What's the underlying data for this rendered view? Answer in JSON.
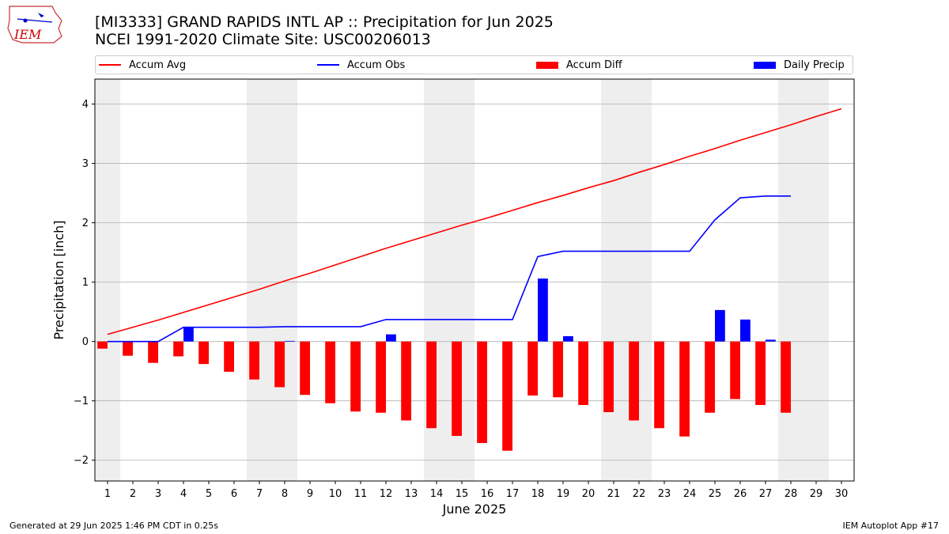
{
  "header": {
    "title": "[MI3333] GRAND RAPIDS INTL AP :: Precipitation for Jun 2025",
    "subtitle": "NCEI 1991-2020 Climate Site: USC00206013",
    "logo_text": "IEM"
  },
  "legend": {
    "placement": "top, above plot",
    "items": [
      {
        "label": "Accum Avg",
        "color": "#ff0000",
        "kind": "line"
      },
      {
        "label": "Accum Obs",
        "color": "#0000ff",
        "kind": "line"
      },
      {
        "label": "Accum Diff",
        "color": "#ff0000",
        "kind": "bar"
      },
      {
        "label": "Daily Precip",
        "color": "#0000ff",
        "kind": "bar"
      }
    ]
  },
  "footer": {
    "left": "Generated at 29 Jun 2025 1:46 PM CDT in 0.25s",
    "right": "IEM Autoplot App #17"
  },
  "chart_data": {
    "type": "bar",
    "xlabel": "June 2025",
    "ylabel": "Precipitation [inch]",
    "xlim": [
      0.5,
      30.5
    ],
    "ylim": [
      -2.35,
      4.42
    ],
    "yticks": [
      -2,
      -1,
      0,
      1,
      2,
      3,
      4
    ],
    "ytick_labels": [
      "−2",
      "−1",
      "0",
      "1",
      "2",
      "3",
      "4"
    ],
    "days": [
      1,
      2,
      3,
      4,
      5,
      6,
      7,
      8,
      9,
      10,
      11,
      12,
      13,
      14,
      15,
      16,
      17,
      18,
      19,
      20,
      21,
      22,
      23,
      24,
      25,
      26,
      27,
      28,
      29,
      30
    ],
    "grid": "horizontal",
    "weekend_shading": [
      [
        0.5,
        1.5
      ],
      [
        6.5,
        8.5
      ],
      [
        13.5,
        15.5
      ],
      [
        20.5,
        22.5
      ],
      [
        27.5,
        29.5
      ]
    ],
    "series": [
      {
        "name": "Accum Avg",
        "kind": "line",
        "color": "#ff0000",
        "x": [
          1,
          2,
          3,
          4,
          5,
          6,
          7,
          8,
          9,
          10,
          11,
          12,
          13,
          14,
          15,
          16,
          17,
          18,
          19,
          20,
          21,
          22,
          23,
          24,
          25,
          26,
          27,
          28,
          29,
          30
        ],
        "values": [
          0.12,
          0.24,
          0.36,
          0.49,
          0.62,
          0.75,
          0.88,
          1.02,
          1.15,
          1.29,
          1.43,
          1.57,
          1.7,
          1.83,
          1.96,
          2.08,
          2.21,
          2.34,
          2.46,
          2.59,
          2.71,
          2.85,
          2.98,
          3.12,
          3.25,
          3.39,
          3.52,
          3.65,
          3.79,
          3.92
        ]
      },
      {
        "name": "Accum Obs",
        "kind": "line",
        "color": "#0000ff",
        "x": [
          1,
          2,
          3,
          4,
          5,
          6,
          7,
          8,
          9,
          10,
          11,
          12,
          13,
          14,
          15,
          16,
          17,
          18,
          19,
          20,
          21,
          22,
          23,
          24,
          25,
          26,
          27,
          28
        ],
        "values": [
          0.0,
          0.0,
          0.0,
          0.24,
          0.24,
          0.24,
          0.24,
          0.25,
          0.25,
          0.25,
          0.25,
          0.37,
          0.37,
          0.37,
          0.37,
          0.37,
          0.37,
          1.43,
          1.52,
          1.52,
          1.52,
          1.52,
          1.52,
          1.52,
          2.05,
          2.42,
          2.45,
          2.45
        ]
      },
      {
        "name": "Accum Diff",
        "kind": "bar",
        "color": "#ff0000",
        "offset": -0.2,
        "x": [
          1,
          2,
          3,
          4,
          5,
          6,
          7,
          8,
          9,
          10,
          11,
          12,
          13,
          14,
          15,
          16,
          17,
          18,
          19,
          20,
          21,
          22,
          23,
          24,
          25,
          26,
          27,
          28
        ],
        "values": [
          -0.12,
          -0.24,
          -0.36,
          -0.25,
          -0.38,
          -0.51,
          -0.64,
          -0.77,
          -0.9,
          -1.04,
          -1.18,
          -1.2,
          -1.33,
          -1.46,
          -1.59,
          -1.71,
          -1.84,
          -0.91,
          -0.94,
          -1.07,
          -1.19,
          -1.33,
          -1.46,
          -1.6,
          -1.2,
          -0.97,
          -1.07,
          -1.2
        ]
      },
      {
        "name": "Daily Precip",
        "kind": "bar",
        "color": "#0000ff",
        "offset": 0.2,
        "x": [
          4,
          8,
          12,
          18,
          19,
          25,
          26,
          27
        ],
        "values": [
          0.24,
          0.01,
          0.12,
          1.06,
          0.09,
          0.53,
          0.37,
          0.03
        ]
      }
    ]
  }
}
